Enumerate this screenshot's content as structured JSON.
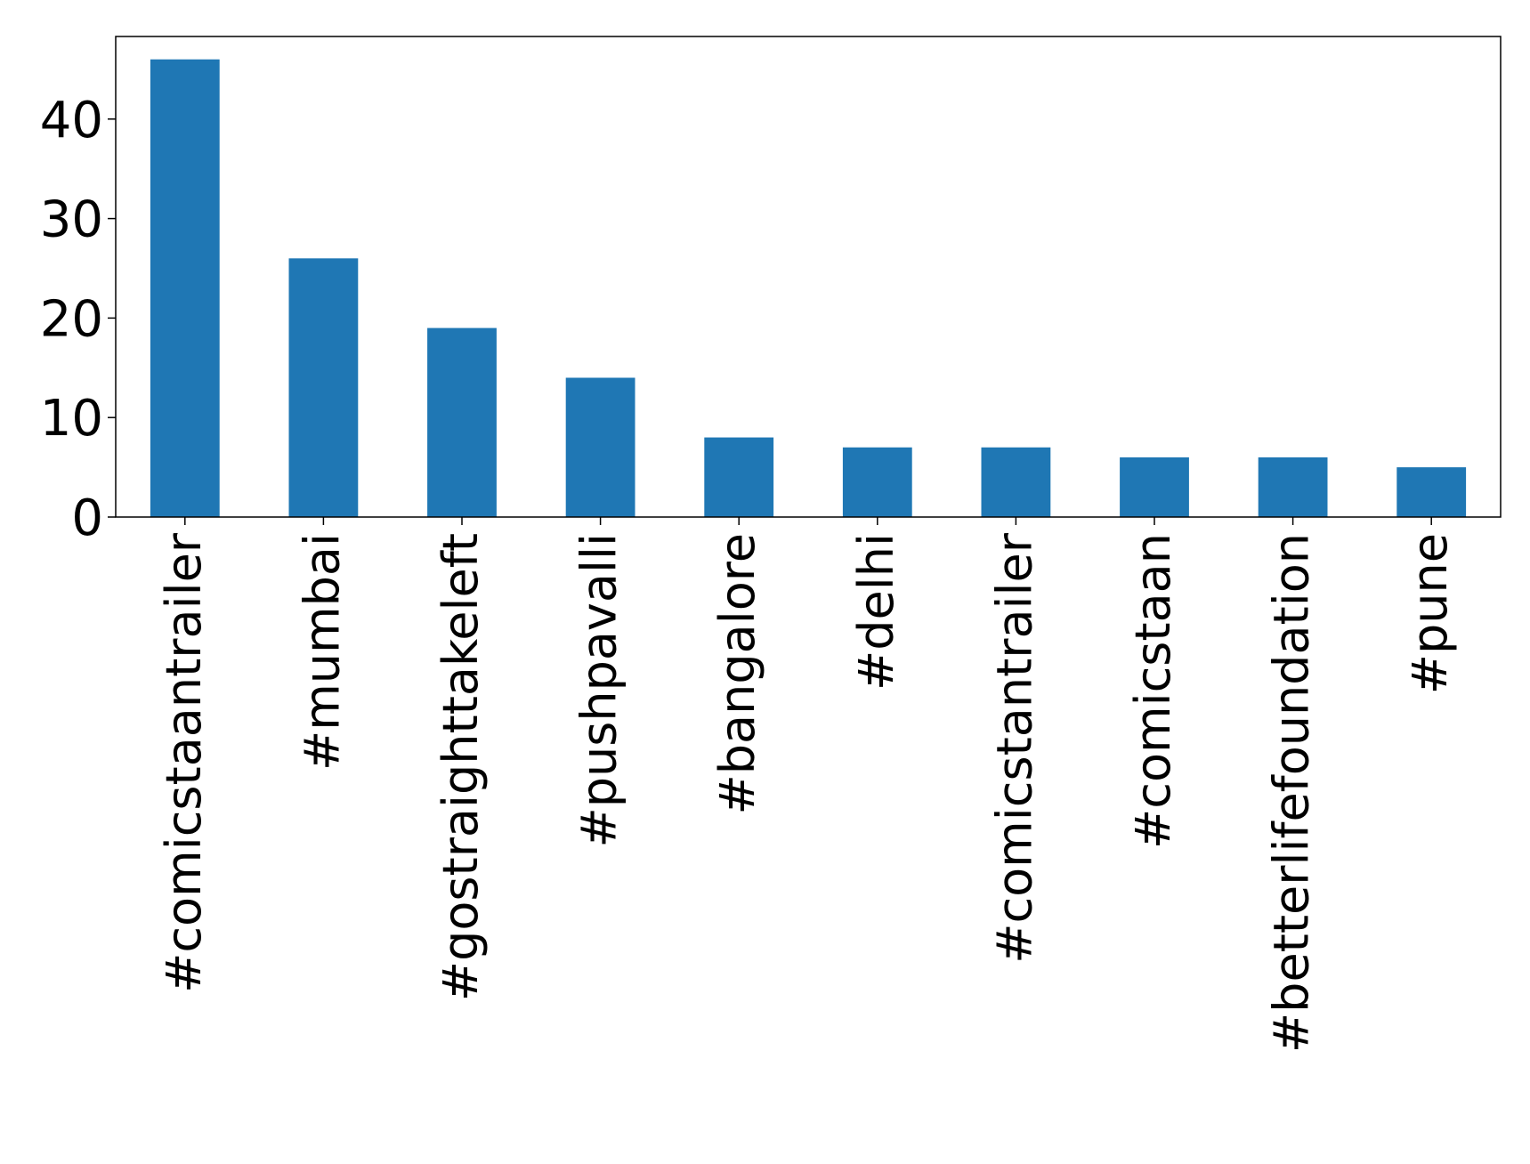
{
  "chart_data": {
    "type": "bar",
    "title": "",
    "xlabel": "",
    "ylabel": "",
    "categories": [
      "#comicstaantrailer",
      "#mumbai",
      "#gostraighttakeleft",
      "#pushpavalli",
      "#bangalore",
      "#delhi",
      "#comicstantrailer",
      "#comicstaan",
      "#betterlifefoundation",
      "#pune"
    ],
    "values": [
      46,
      26,
      19,
      14,
      8,
      7,
      7,
      6,
      6,
      5
    ],
    "ylim": [
      0,
      48.3
    ],
    "yticks": [
      0,
      10,
      20,
      30,
      40
    ],
    "grid": false,
    "legend": "none",
    "bar_color": "#1f77b4"
  }
}
